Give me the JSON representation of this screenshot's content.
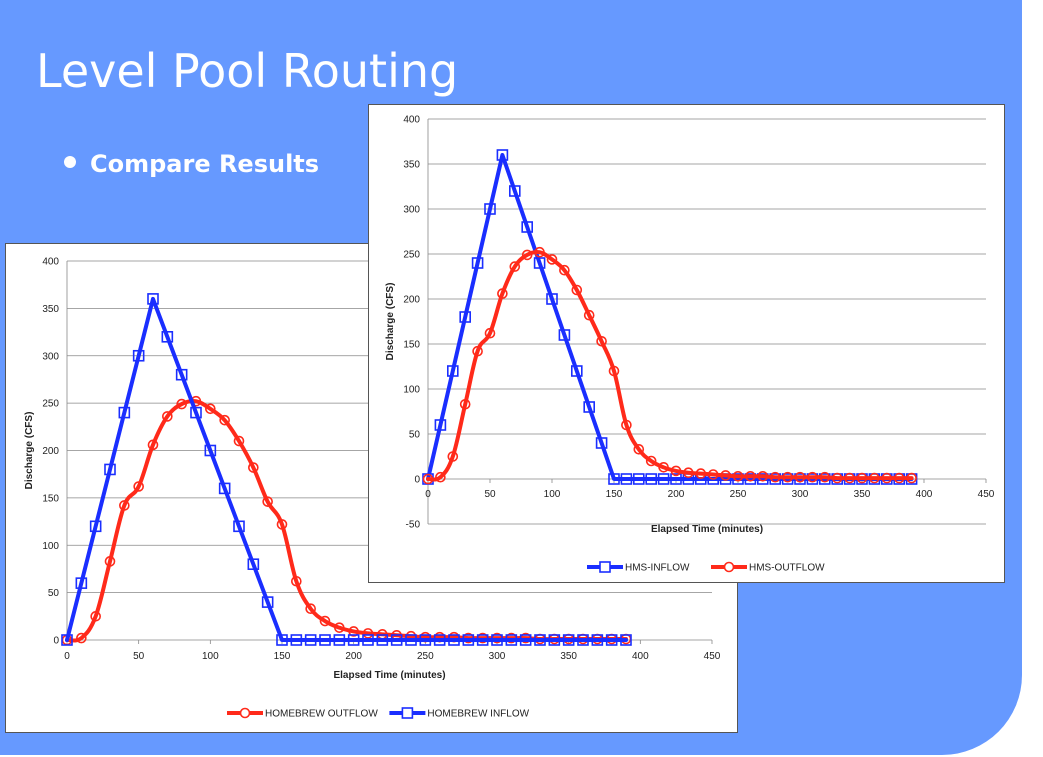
{
  "slide": {
    "title": "Level Pool Routing",
    "bullet": "Compare Results"
  },
  "chart_data": [
    {
      "type": "line",
      "xlabel": "Elapsed Time (minutes)",
      "ylabel": "Discharge (CFS)",
      "xlim": [
        0,
        450
      ],
      "ylim": [
        0,
        400
      ],
      "xticks": [
        0,
        50,
        100,
        150,
        200,
        250,
        300,
        350,
        400,
        450
      ],
      "yticks": [
        0,
        50,
        100,
        150,
        200,
        250,
        300,
        350,
        400
      ],
      "grid": "horizontal",
      "legend": "bottom",
      "series": [
        {
          "name": "HOMEBREW OUTFLOW",
          "color": "#ff2a1a",
          "marker": "circle",
          "x": [
            0,
            10,
            20,
            30,
            40,
            50,
            60,
            70,
            80,
            90,
            100,
            110,
            120,
            130,
            140,
            150,
            160,
            170,
            180,
            190,
            200,
            210,
            220,
            230,
            240,
            250,
            260,
            270,
            280,
            290,
            300,
            310,
            320,
            330,
            340,
            350,
            360,
            370,
            380,
            390
          ],
          "y": [
            0,
            2,
            25,
            83,
            142,
            162,
            206,
            236,
            249,
            252,
            244,
            232,
            210,
            182,
            146,
            122,
            62,
            33,
            20,
            13,
            9,
            7,
            6,
            5,
            4,
            3,
            3,
            3,
            2,
            2,
            2,
            2,
            2,
            1,
            1,
            1,
            1,
            1,
            1,
            1
          ]
        },
        {
          "name": "HOMEBREW INFLOW",
          "color": "#1a2eff",
          "marker": "square",
          "x": [
            0,
            10,
            20,
            30,
            40,
            50,
            60,
            70,
            80,
            90,
            100,
            110,
            120,
            130,
            140,
            150,
            160,
            170,
            180,
            190,
            200,
            210,
            220,
            230,
            240,
            250,
            260,
            270,
            280,
            290,
            300,
            310,
            320,
            330,
            340,
            350,
            360,
            370,
            380,
            390
          ],
          "y": [
            0,
            60,
            120,
            180,
            240,
            300,
            360,
            320,
            280,
            240,
            200,
            160,
            120,
            80,
            40,
            0,
            0,
            0,
            0,
            0,
            0,
            0,
            0,
            0,
            0,
            0,
            0,
            0,
            0,
            0,
            0,
            0,
            0,
            0,
            0,
            0,
            0,
            0,
            0,
            0
          ]
        }
      ]
    },
    {
      "type": "line",
      "xlabel": "Elapsed Time (minutes)",
      "ylabel": "Discharge (CFS)",
      "xlim": [
        0,
        450
      ],
      "ylim": [
        -50,
        400
      ],
      "xticks": [
        0,
        50,
        100,
        150,
        200,
        250,
        300,
        350,
        400,
        450
      ],
      "yticks": [
        -50,
        0,
        50,
        100,
        150,
        200,
        250,
        300,
        350,
        400
      ],
      "grid": "horizontal",
      "legend": "bottom",
      "series": [
        {
          "name": "HMS-INFLOW",
          "color": "#1a2eff",
          "marker": "square",
          "x": [
            0,
            10,
            20,
            30,
            40,
            50,
            60,
            70,
            80,
            90,
            100,
            110,
            120,
            130,
            140,
            150,
            160,
            170,
            180,
            190,
            200,
            210,
            220,
            230,
            240,
            250,
            260,
            270,
            280,
            290,
            300,
            310,
            320,
            330,
            340,
            350,
            360,
            370,
            380,
            390
          ],
          "y": [
            0,
            60,
            120,
            180,
            240,
            300,
            360,
            320,
            280,
            240,
            200,
            160,
            120,
            80,
            40,
            0,
            0,
            0,
            0,
            0,
            0,
            0,
            0,
            0,
            0,
            0,
            0,
            0,
            0,
            0,
            0,
            0,
            0,
            0,
            0,
            0,
            0,
            0,
            0,
            0
          ]
        },
        {
          "name": "HMS-OUTFLOW",
          "color": "#ff2a1a",
          "marker": "circle",
          "x": [
            0,
            10,
            20,
            30,
            40,
            50,
            60,
            70,
            80,
            90,
            100,
            110,
            120,
            130,
            140,
            150,
            160,
            170,
            180,
            190,
            200,
            210,
            220,
            230,
            240,
            250,
            260,
            270,
            280,
            290,
            300,
            310,
            320,
            330,
            340,
            350,
            360,
            370,
            380,
            390
          ],
          "y": [
            0,
            2,
            25,
            83,
            142,
            162,
            206,
            236,
            249,
            252,
            244,
            232,
            210,
            182,
            153,
            120,
            60,
            33,
            20,
            13,
            9,
            7,
            6,
            5,
            4,
            3,
            3,
            3,
            2,
            2,
            2,
            2,
            2,
            1,
            1,
            1,
            1,
            1,
            1,
            1
          ]
        }
      ]
    }
  ]
}
